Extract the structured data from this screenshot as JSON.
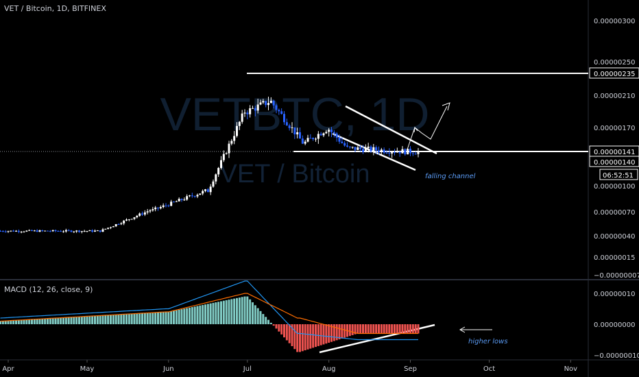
{
  "header": {
    "title": "VET / Bitcoin, 1D, BITFINEX"
  },
  "watermark": {
    "line1": "VETBTC, 1D",
    "line2": "VET / Bitcoin"
  },
  "macd_panel": {
    "title": "MACD (12, 26, close, 9)"
  },
  "annotations": {
    "falling_channel": "falling channel",
    "higher_lows": "higher lows"
  },
  "colors": {
    "background": "#000000",
    "up": "#ffffff",
    "down": "#2962ff",
    "hist_up": "#80cbc4",
    "hist_down": "#ef5350",
    "macd_line": "#2196f3",
    "signal_line": "#ff6d00",
    "drawing": "#ffffff",
    "annotation": "#5b9cf6",
    "axis_text": "#d1d4dc"
  },
  "chart_data": [
    {
      "type": "candlestick",
      "title": "VET / Bitcoin, 1D, BITFINEX",
      "y_ticks": [
        {
          "value": 3e-06,
          "label": "0.00000300"
        },
        {
          "value": 2.5e-06,
          "label": "0.00000250"
        },
        {
          "value": 2.1e-06,
          "label": "0.00000210"
        },
        {
          "value": 1.7e-06,
          "label": "0.00000170"
        },
        {
          "value": 1e-06,
          "label": "0.00000100"
        },
        {
          "value": 7e-07,
          "label": "0.00000070"
        },
        {
          "value": 4e-07,
          "label": "0.00000040"
        },
        {
          "value": 1.5e-07,
          "label": "0.00000015"
        },
        {
          "value": -7e-08,
          "label": "−0.00000007"
        }
      ],
      "x_ticks": [
        {
          "date": "2019-04-01",
          "label": "Apr"
        },
        {
          "date": "2019-05-01",
          "label": "May"
        },
        {
          "date": "2019-06-01",
          "label": "Jun"
        },
        {
          "date": "2019-07-01",
          "label": "Jul"
        },
        {
          "date": "2019-08-01",
          "label": "Aug"
        },
        {
          "date": "2019-09-01",
          "label": "Sep"
        },
        {
          "date": "2019-10-01",
          "label": "Oct"
        },
        {
          "date": "2019-11-01",
          "label": "Nov"
        }
      ],
      "price_badges": [
        {
          "value": 2.35e-06,
          "label": "0.00000235"
        },
        {
          "value": 1.41e-06,
          "label": "0.00000141"
        },
        {
          "value": 1.4e-06,
          "label": "0.00000140"
        }
      ],
      "countdown_label": "06:52:51",
      "horizontal_lines": [
        2.35e-06,
        1.41e-06
      ],
      "ohlc_phases": [
        {
          "from": "2019-03-29",
          "to": "2019-05-05",
          "level": 4.6e-07
        },
        {
          "from": "2019-05-06",
          "to": "2019-05-25",
          "level": 4.6e-07
        },
        {
          "from": "2019-05-26",
          "to": "2019-06-15",
          "level": 7.2e-07
        },
        {
          "from": "2019-06-16",
          "to": "2019-06-30",
          "level": 9.4e-07
        },
        {
          "from": "2019-07-01",
          "to": "2019-07-09",
          "level": 1.9e-06
        },
        {
          "from": "2019-07-10",
          "to": "2019-07-22",
          "level": 2.02e-06
        },
        {
          "from": "2019-07-23",
          "to": "2019-07-31",
          "level": 1.52e-06
        },
        {
          "from": "2019-08-01",
          "to": "2019-08-08",
          "level": 1.68e-06
        },
        {
          "from": "2019-08-09",
          "to": "2019-08-31",
          "level": 1.45e-06
        },
        {
          "from": "2019-09-01",
          "to": "2019-09-04",
          "level": 1.41e-06
        }
      ]
    },
    {
      "type": "macd",
      "title": "MACD (12, 26, close, 9)",
      "y_ticks": [
        {
          "value": 1e-07,
          "label": "0.00000010"
        },
        {
          "value": 0,
          "label": "0.00000000"
        },
        {
          "value": -1e-07,
          "label": "−0.00000010"
        }
      ],
      "histogram_phases": [
        {
          "from": "2019-03-29",
          "to": "2019-05-31",
          "value": 1e-08
        },
        {
          "from": "2019-06-01",
          "to": "2019-06-30",
          "value": 4e-08
        },
        {
          "from": "2019-07-01",
          "to": "2019-07-20",
          "value": 9e-08
        },
        {
          "from": "2019-07-21",
          "to": "2019-08-12",
          "value": -9e-08
        },
        {
          "from": "2019-08-13",
          "to": "2019-09-04",
          "value": -3e-08
        }
      ],
      "macd_phases": [
        {
          "from": "2019-03-29",
          "to": "2019-05-31",
          "value": 2e-08
        },
        {
          "from": "2019-06-01",
          "to": "2019-06-30",
          "value": 5e-08
        },
        {
          "from": "2019-07-01",
          "to": "2019-07-20",
          "value": 1.4e-07
        },
        {
          "from": "2019-07-21",
          "to": "2019-08-12",
          "value": -3e-08
        },
        {
          "from": "2019-08-13",
          "to": "2019-09-04",
          "value": -5e-08
        }
      ],
      "signal_phases": [
        {
          "from": "2019-03-29",
          "to": "2019-05-31",
          "value": 1e-08
        },
        {
          "from": "2019-06-01",
          "to": "2019-06-30",
          "value": 4e-08
        },
        {
          "from": "2019-07-01",
          "to": "2019-07-20",
          "value": 1e-07
        },
        {
          "from": "2019-07-21",
          "to": "2019-08-12",
          "value": 2e-08
        },
        {
          "from": "2019-08-13",
          "to": "2019-09-04",
          "value": -3e-08
        }
      ]
    }
  ]
}
